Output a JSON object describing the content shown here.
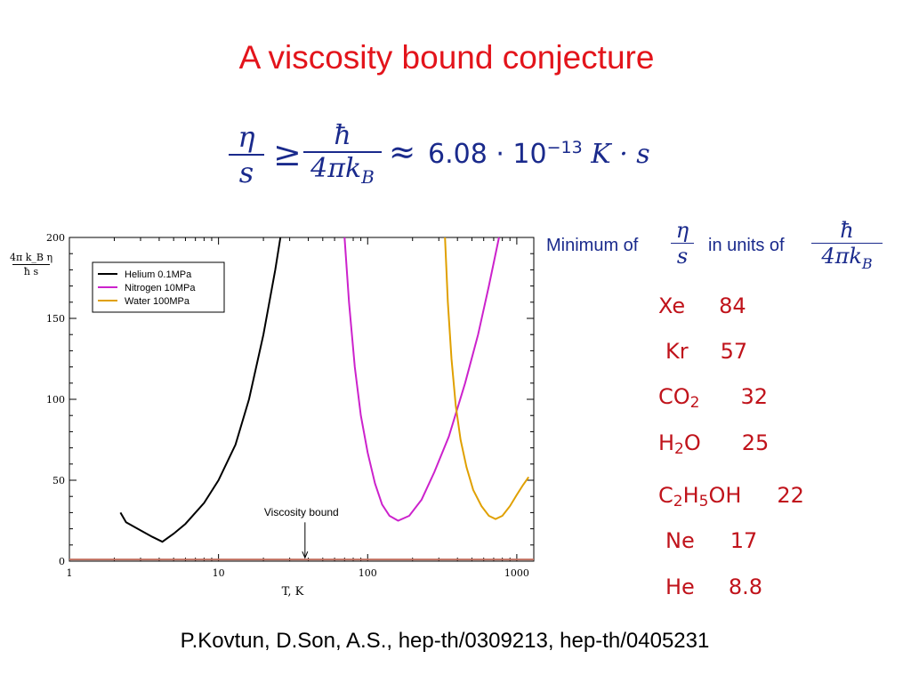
{
  "slide": {
    "title": "A viscosity bound conjecture",
    "citation": "P.Kovtun, D.Son, A.S., hep-th/0309213, hep-th/0405231"
  },
  "formula": {
    "lhs_numerator": "η",
    "lhs_denominator": "s",
    "relation": "≥",
    "rhs_numerator": "ħ",
    "rhs_denominator": "4πk",
    "rhs_denominator_sub": "B",
    "approx": "≈",
    "value": "6.08 · 10",
    "exponent": "−13",
    "units": "K · s"
  },
  "side_heading": {
    "prefix": "Minimum of",
    "ratio_numerator": "η",
    "ratio_denominator": "s",
    "middle": "in units of",
    "unit_numerator": "ħ",
    "unit_denominator": "4πk",
    "unit_denominator_sub": "B"
  },
  "minima": [
    {
      "parts": [
        "Xe"
      ],
      "value": "84"
    },
    {
      "parts": [
        "Kr"
      ],
      "value": "57"
    },
    {
      "parts": [
        "CO",
        "2"
      ],
      "value": "32"
    },
    {
      "parts": [
        "H",
        "2",
        "O"
      ],
      "value": "25"
    },
    {
      "parts": [
        "C",
        "2",
        "H",
        "5",
        "OH"
      ],
      "value": "22"
    },
    {
      "parts": [
        "Ne"
      ],
      "value": "17"
    },
    {
      "parts": [
        "He"
      ],
      "value": "8.8"
    }
  ],
  "chart_data": {
    "type": "line",
    "xlabel": "T, K",
    "ylabel_numerator": "4π k_B η",
    "ylabel_denominator": "ħ s",
    "x_scale": "log",
    "xlim": [
      1,
      1300
    ],
    "ylim": [
      0,
      200
    ],
    "x_ticks": [
      1,
      10,
      100,
      1000
    ],
    "y_ticks": [
      0,
      50,
      100,
      150,
      200
    ],
    "legend_position": "top-left",
    "grid": false,
    "series": [
      {
        "name": "Helium 0.1MPa",
        "color": "#000000",
        "points": [
          [
            2.2,
            30
          ],
          [
            2.4,
            24
          ],
          [
            3.0,
            19
          ],
          [
            3.6,
            15
          ],
          [
            4.2,
            12
          ],
          [
            5,
            17
          ],
          [
            6,
            23
          ],
          [
            8,
            36
          ],
          [
            10,
            50
          ],
          [
            13,
            72
          ],
          [
            16,
            100
          ],
          [
            20,
            140
          ],
          [
            24,
            180
          ],
          [
            26,
            200
          ]
        ]
      },
      {
        "name": "Nitrogen 10MPa",
        "color": "#cc22cc",
        "points": [
          [
            70,
            200
          ],
          [
            75,
            160
          ],
          [
            82,
            120
          ],
          [
            90,
            90
          ],
          [
            100,
            67
          ],
          [
            112,
            48
          ],
          [
            125,
            35
          ],
          [
            140,
            28
          ],
          [
            160,
            25
          ],
          [
            190,
            28
          ],
          [
            230,
            38
          ],
          [
            280,
            55
          ],
          [
            350,
            77
          ],
          [
            450,
            110
          ],
          [
            550,
            140
          ],
          [
            650,
            170
          ],
          [
            760,
            200
          ]
        ]
      },
      {
        "name": "Water 100MPa",
        "color": "#e0a000",
        "points": [
          [
            330,
            200
          ],
          [
            345,
            160
          ],
          [
            365,
            125
          ],
          [
            390,
            96
          ],
          [
            420,
            75
          ],
          [
            460,
            58
          ],
          [
            510,
            44
          ],
          [
            580,
            34
          ],
          [
            650,
            28
          ],
          [
            720,
            26
          ],
          [
            800,
            28
          ],
          [
            900,
            34
          ],
          [
            1000,
            41
          ],
          [
            1100,
            47
          ],
          [
            1200,
            52
          ]
        ]
      }
    ],
    "bound": {
      "value": 1,
      "color": "#c07060",
      "annotation": "Viscosity bound",
      "annotation_x": 38
    }
  }
}
